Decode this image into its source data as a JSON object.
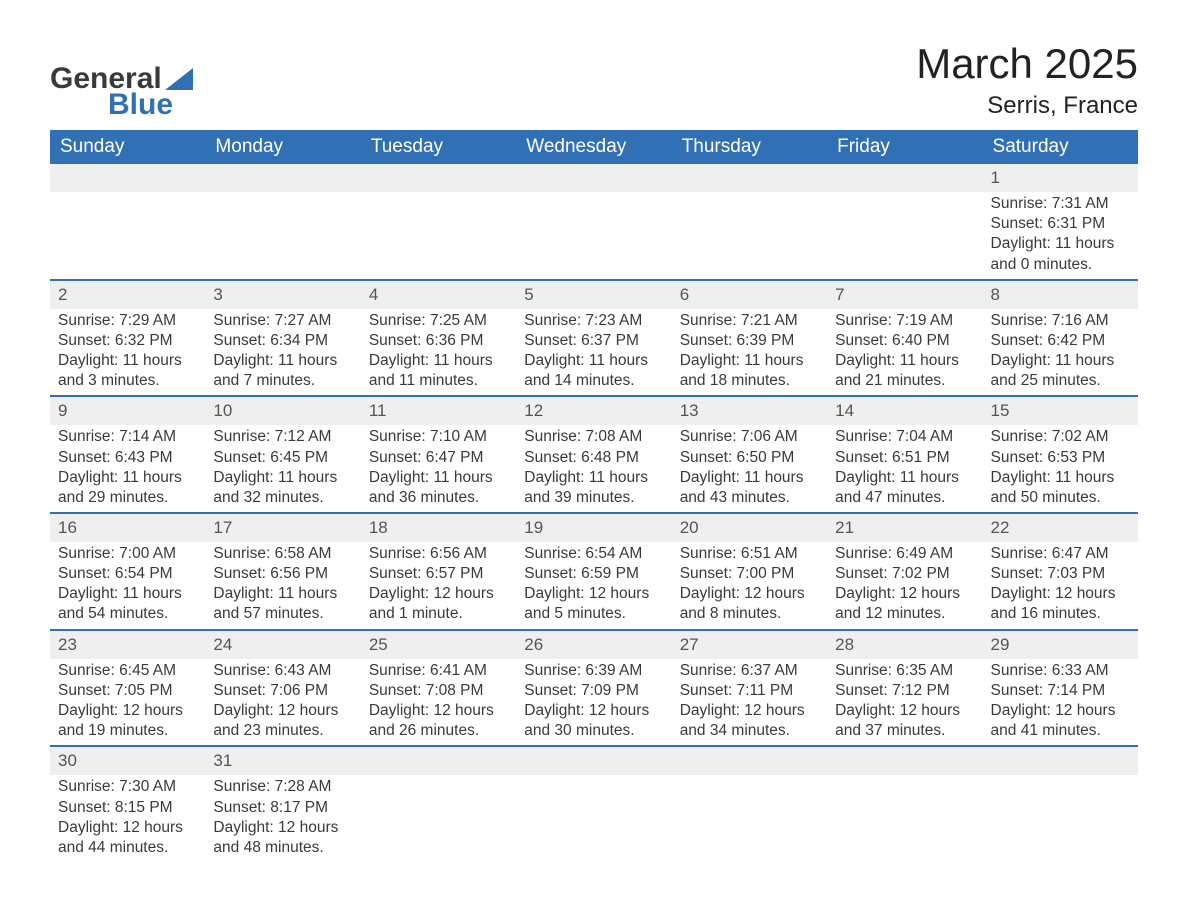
{
  "logo": {
    "text1": "General",
    "text2": "Blue",
    "triangle_color": "#3270b5"
  },
  "title": "March 2025",
  "location": "Serris, France",
  "colors": {
    "header_bg": "#3270b5",
    "header_text": "#ffffff",
    "daynum_bg": "#efefef",
    "row_border": "#3270b5",
    "body_text": "#3a3a3a"
  },
  "typography": {
    "title_fontsize": 42,
    "location_fontsize": 24,
    "header_fontsize": 19,
    "cell_fontsize": 15.5
  },
  "day_labels": [
    "Sunday",
    "Monday",
    "Tuesday",
    "Wednesday",
    "Thursday",
    "Friday",
    "Saturday"
  ],
  "weeks": [
    [
      null,
      null,
      null,
      null,
      null,
      null,
      {
        "n": "1",
        "sr": "Sunrise: 7:31 AM",
        "ss": "Sunset: 6:31 PM",
        "dl": "Daylight: 11 hours and 0 minutes."
      }
    ],
    [
      {
        "n": "2",
        "sr": "Sunrise: 7:29 AM",
        "ss": "Sunset: 6:32 PM",
        "dl": "Daylight: 11 hours and 3 minutes."
      },
      {
        "n": "3",
        "sr": "Sunrise: 7:27 AM",
        "ss": "Sunset: 6:34 PM",
        "dl": "Daylight: 11 hours and 7 minutes."
      },
      {
        "n": "4",
        "sr": "Sunrise: 7:25 AM",
        "ss": "Sunset: 6:36 PM",
        "dl": "Daylight: 11 hours and 11 minutes."
      },
      {
        "n": "5",
        "sr": "Sunrise: 7:23 AM",
        "ss": "Sunset: 6:37 PM",
        "dl": "Daylight: 11 hours and 14 minutes."
      },
      {
        "n": "6",
        "sr": "Sunrise: 7:21 AM",
        "ss": "Sunset: 6:39 PM",
        "dl": "Daylight: 11 hours and 18 minutes."
      },
      {
        "n": "7",
        "sr": "Sunrise: 7:19 AM",
        "ss": "Sunset: 6:40 PM",
        "dl": "Daylight: 11 hours and 21 minutes."
      },
      {
        "n": "8",
        "sr": "Sunrise: 7:16 AM",
        "ss": "Sunset: 6:42 PM",
        "dl": "Daylight: 11 hours and 25 minutes."
      }
    ],
    [
      {
        "n": "9",
        "sr": "Sunrise: 7:14 AM",
        "ss": "Sunset: 6:43 PM",
        "dl": "Daylight: 11 hours and 29 minutes."
      },
      {
        "n": "10",
        "sr": "Sunrise: 7:12 AM",
        "ss": "Sunset: 6:45 PM",
        "dl": "Daylight: 11 hours and 32 minutes."
      },
      {
        "n": "11",
        "sr": "Sunrise: 7:10 AM",
        "ss": "Sunset: 6:47 PM",
        "dl": "Daylight: 11 hours and 36 minutes."
      },
      {
        "n": "12",
        "sr": "Sunrise: 7:08 AM",
        "ss": "Sunset: 6:48 PM",
        "dl": "Daylight: 11 hours and 39 minutes."
      },
      {
        "n": "13",
        "sr": "Sunrise: 7:06 AM",
        "ss": "Sunset: 6:50 PM",
        "dl": "Daylight: 11 hours and 43 minutes."
      },
      {
        "n": "14",
        "sr": "Sunrise: 7:04 AM",
        "ss": "Sunset: 6:51 PM",
        "dl": "Daylight: 11 hours and 47 minutes."
      },
      {
        "n": "15",
        "sr": "Sunrise: 7:02 AM",
        "ss": "Sunset: 6:53 PM",
        "dl": "Daylight: 11 hours and 50 minutes."
      }
    ],
    [
      {
        "n": "16",
        "sr": "Sunrise: 7:00 AM",
        "ss": "Sunset: 6:54 PM",
        "dl": "Daylight: 11 hours and 54 minutes."
      },
      {
        "n": "17",
        "sr": "Sunrise: 6:58 AM",
        "ss": "Sunset: 6:56 PM",
        "dl": "Daylight: 11 hours and 57 minutes."
      },
      {
        "n": "18",
        "sr": "Sunrise: 6:56 AM",
        "ss": "Sunset: 6:57 PM",
        "dl": "Daylight: 12 hours and 1 minute."
      },
      {
        "n": "19",
        "sr": "Sunrise: 6:54 AM",
        "ss": "Sunset: 6:59 PM",
        "dl": "Daylight: 12 hours and 5 minutes."
      },
      {
        "n": "20",
        "sr": "Sunrise: 6:51 AM",
        "ss": "Sunset: 7:00 PM",
        "dl": "Daylight: 12 hours and 8 minutes."
      },
      {
        "n": "21",
        "sr": "Sunrise: 6:49 AM",
        "ss": "Sunset: 7:02 PM",
        "dl": "Daylight: 12 hours and 12 minutes."
      },
      {
        "n": "22",
        "sr": "Sunrise: 6:47 AM",
        "ss": "Sunset: 7:03 PM",
        "dl": "Daylight: 12 hours and 16 minutes."
      }
    ],
    [
      {
        "n": "23",
        "sr": "Sunrise: 6:45 AM",
        "ss": "Sunset: 7:05 PM",
        "dl": "Daylight: 12 hours and 19 minutes."
      },
      {
        "n": "24",
        "sr": "Sunrise: 6:43 AM",
        "ss": "Sunset: 7:06 PM",
        "dl": "Daylight: 12 hours and 23 minutes."
      },
      {
        "n": "25",
        "sr": "Sunrise: 6:41 AM",
        "ss": "Sunset: 7:08 PM",
        "dl": "Daylight: 12 hours and 26 minutes."
      },
      {
        "n": "26",
        "sr": "Sunrise: 6:39 AM",
        "ss": "Sunset: 7:09 PM",
        "dl": "Daylight: 12 hours and 30 minutes."
      },
      {
        "n": "27",
        "sr": "Sunrise: 6:37 AM",
        "ss": "Sunset: 7:11 PM",
        "dl": "Daylight: 12 hours and 34 minutes."
      },
      {
        "n": "28",
        "sr": "Sunrise: 6:35 AM",
        "ss": "Sunset: 7:12 PM",
        "dl": "Daylight: 12 hours and 37 minutes."
      },
      {
        "n": "29",
        "sr": "Sunrise: 6:33 AM",
        "ss": "Sunset: 7:14 PM",
        "dl": "Daylight: 12 hours and 41 minutes."
      }
    ],
    [
      {
        "n": "30",
        "sr": "Sunrise: 7:30 AM",
        "ss": "Sunset: 8:15 PM",
        "dl": "Daylight: 12 hours and 44 minutes."
      },
      {
        "n": "31",
        "sr": "Sunrise: 7:28 AM",
        "ss": "Sunset: 8:17 PM",
        "dl": "Daylight: 12 hours and 48 minutes."
      },
      null,
      null,
      null,
      null,
      null
    ]
  ]
}
